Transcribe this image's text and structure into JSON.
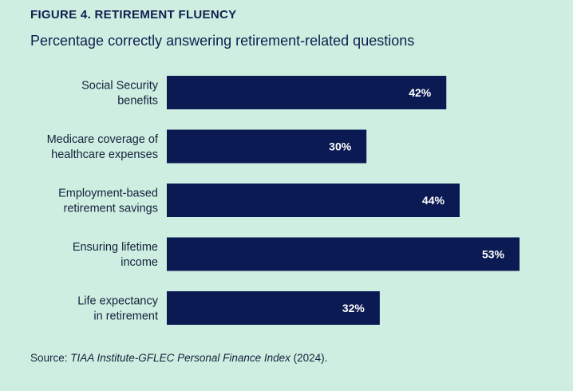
{
  "figure": {
    "title": "FIGURE 4. RETIREMENT FLUENCY",
    "subtitle": "Percentage correctly answering retirement-related questions"
  },
  "source": {
    "prefix": "Source: ",
    "citation": "TIAA Institute-GFLEC Personal Finance Index",
    "suffix": " (2024)."
  },
  "colors": {
    "background": "#cdeee0",
    "bar": "#0b1a52",
    "text": "#14213d",
    "bar_label": "#ffffff"
  },
  "chart_data": {
    "type": "bar",
    "orientation": "horizontal",
    "title": "FIGURE 4. RETIREMENT FLUENCY",
    "subtitle": "Percentage correctly answering retirement-related questions",
    "categories": [
      [
        "Social Security",
        "benefits"
      ],
      [
        "Medicare coverage of",
        "healthcare expenses"
      ],
      [
        "Employment-based",
        "retirement savings"
      ],
      [
        "Ensuring lifetime",
        "income"
      ],
      [
        "Life expectancy",
        "in retirement"
      ]
    ],
    "values": [
      42,
      30,
      44,
      53,
      32
    ],
    "value_labels": [
      "42%",
      "30%",
      "44%",
      "53%",
      "32%"
    ],
    "xlim": [
      0,
      53
    ],
    "grid": false,
    "legend": "none"
  }
}
